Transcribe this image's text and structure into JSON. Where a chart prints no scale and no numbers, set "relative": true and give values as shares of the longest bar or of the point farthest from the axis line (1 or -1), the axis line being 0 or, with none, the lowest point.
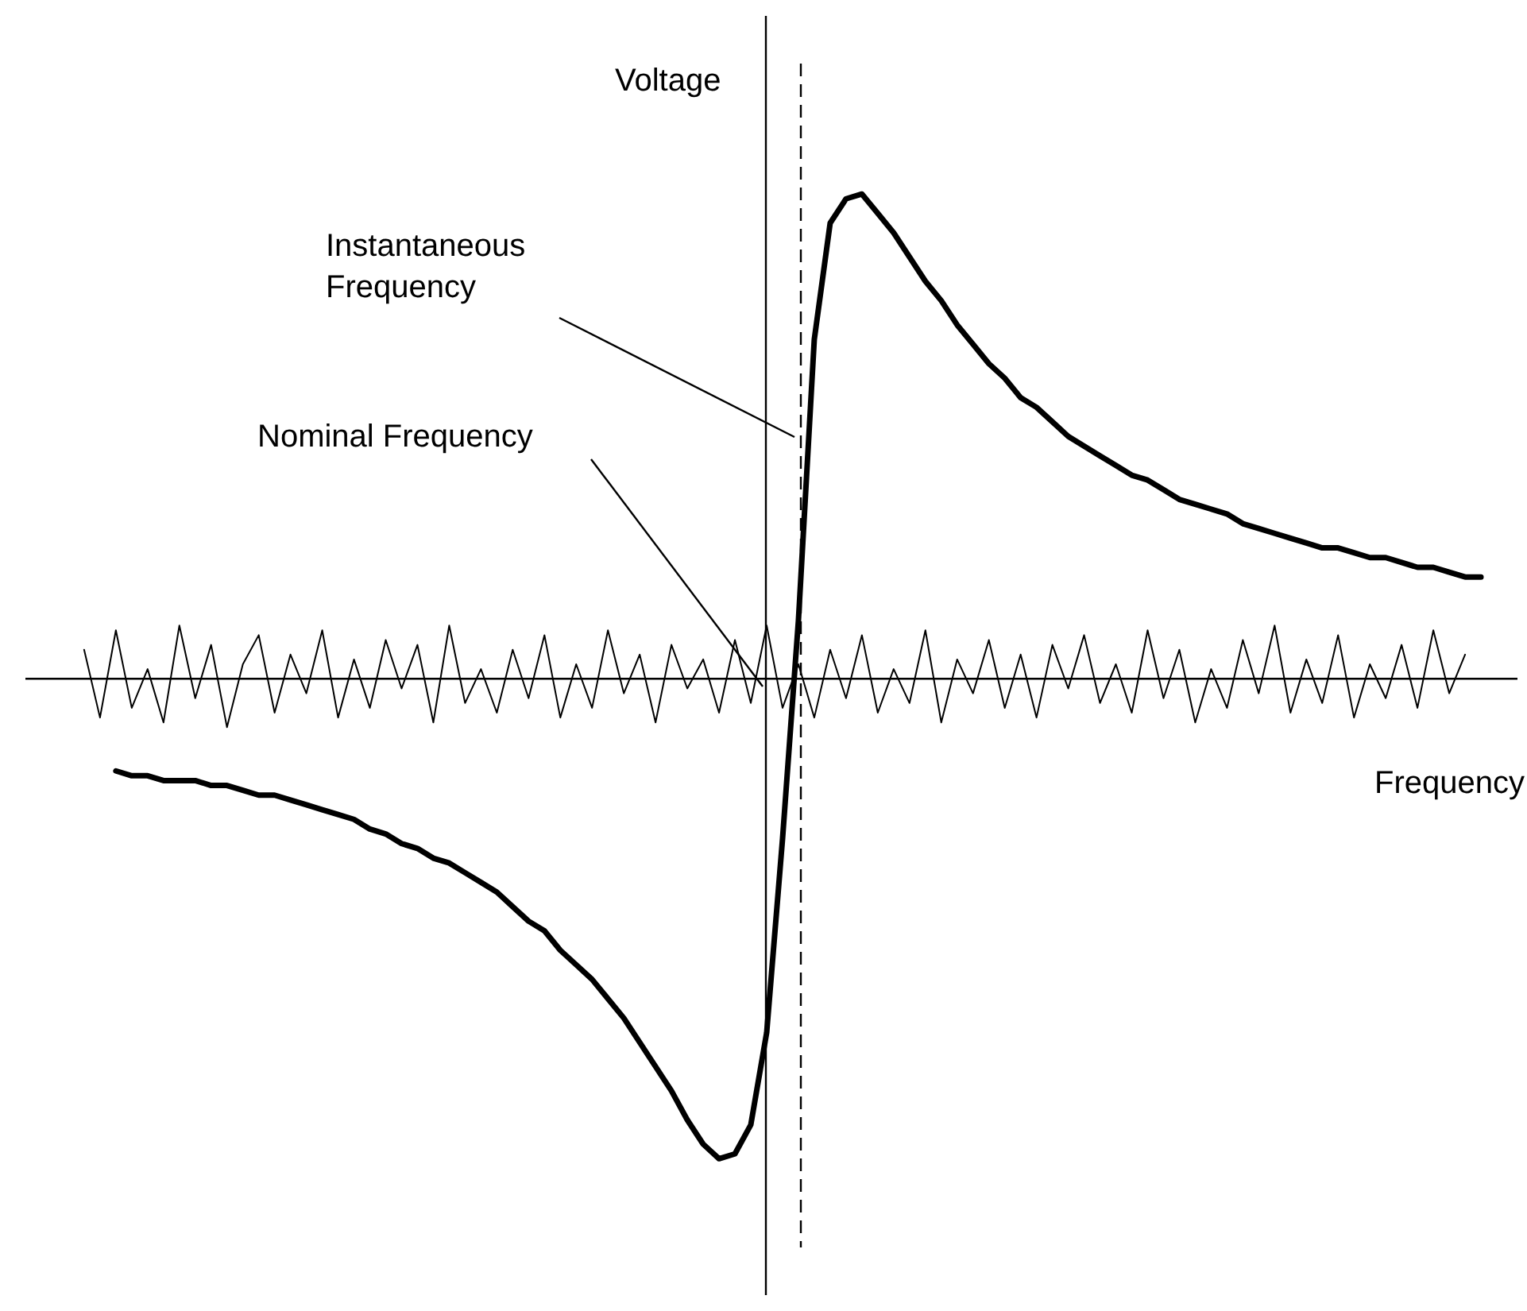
{
  "chart_data": {
    "type": "line",
    "relative": true,
    "xlabel": "Frequency",
    "ylabel": "Voltage",
    "categories": [
      null,
      null,
      null,
      null,
      null,
      null,
      null,
      null,
      null,
      null,
      null,
      null,
      null,
      null,
      null,
      null,
      null,
      null,
      null,
      null,
      null,
      null,
      null,
      null,
      null,
      null,
      null,
      null,
      null,
      null,
      null,
      null,
      null,
      null,
      null,
      null,
      null,
      null,
      null,
      null,
      null,
      null,
      null,
      null,
      null,
      null,
      null,
      null,
      null,
      null,
      null,
      null,
      null,
      null,
      null,
      null,
      null,
      null,
      null,
      null,
      null,
      null,
      null,
      null,
      null,
      null,
      null,
      null,
      null,
      null,
      null,
      null,
      null,
      null,
      null,
      null,
      null,
      null,
      null,
      null,
      null,
      null,
      null,
      null,
      null,
      null,
      null,
      null,
      null,
      null,
      null,
      null,
      null,
      null,
      null,
      null
    ],
    "series": [
      {
        "color": "#000000",
        "values": [
          null,
          null,
          null,
          null,
          null,
          0.06,
          -0.08,
          0.1,
          -0.06,
          0.02,
          -0.09,
          0.11,
          -0.04,
          0.07,
          -0.1,
          0.03,
          0.09,
          -0.07,
          0.05,
          -0.03,
          0.1,
          -0.08,
          0.04,
          -0.06,
          0.08,
          -0.02,
          0.07,
          -0.09,
          0.11,
          -0.05,
          0.02,
          -0.07,
          0.06,
          -0.04,
          0.09,
          -0.08,
          0.03,
          -0.06,
          0.1,
          -0.03,
          0.05,
          -0.09,
          0.07,
          -0.02,
          0.04,
          -0.07,
          0.08,
          -0.05,
          0.11,
          -0.06,
          0.03,
          -0.08,
          0.06,
          -0.04,
          0.09,
          -0.07,
          0.02,
          -0.05,
          0.1,
          -0.09,
          0.04,
          -0.03,
          0.08,
          -0.06,
          0.05,
          -0.08,
          0.07,
          -0.02,
          0.09,
          -0.05,
          0.03,
          -0.07,
          0.1,
          -0.04,
          0.06,
          -0.09,
          0.02,
          -0.06,
          0.08,
          -0.03,
          0.11,
          -0.07,
          0.04,
          -0.05,
          0.09,
          -0.08,
          0.03,
          -0.04,
          0.07,
          -0.06,
          0.1,
          -0.03,
          0.05,
          null,
          null,
          null
        ]
      },
      {
        "color": "#000000",
        "values": [
          null,
          null,
          null,
          null,
          null,
          null,
          null,
          -0.19,
          -0.2,
          -0.2,
          -0.21,
          -0.21,
          -0.21,
          -0.22,
          -0.22,
          -0.23,
          -0.24,
          -0.24,
          -0.25,
          -0.26,
          -0.27,
          -0.28,
          -0.29,
          -0.31,
          -0.32,
          -0.34,
          -0.35,
          -0.37,
          -0.38,
          -0.4,
          -0.42,
          -0.44,
          -0.47,
          -0.5,
          -0.52,
          -0.56,
          -0.59,
          -0.62,
          -0.66,
          -0.7,
          -0.75,
          -0.8,
          -0.85,
          -0.91,
          -0.96,
          -0.99,
          -0.98,
          -0.92,
          -0.73,
          -0.33,
          0.12,
          0.7,
          0.94,
          0.99,
          1.0,
          0.96,
          0.92,
          0.87,
          0.82,
          0.78,
          0.73,
          0.69,
          0.65,
          0.62,
          0.58,
          0.56,
          0.53,
          0.5,
          0.48,
          0.46,
          0.44,
          0.42,
          0.41,
          0.39,
          0.37,
          0.36,
          0.35,
          0.34,
          0.32,
          0.31,
          0.3,
          0.29,
          0.28,
          0.27,
          0.27,
          0.26,
          0.25,
          0.25,
          0.24,
          0.23,
          0.23,
          0.22,
          0.21,
          0.21,
          null,
          null
        ]
      }
    ],
    "annotations": [
      "Instantaneous Frequency",
      "Nominal Frequency"
    ],
    "legend": false,
    "grid": false,
    "marker": "none",
    "line_style": "solid"
  }
}
